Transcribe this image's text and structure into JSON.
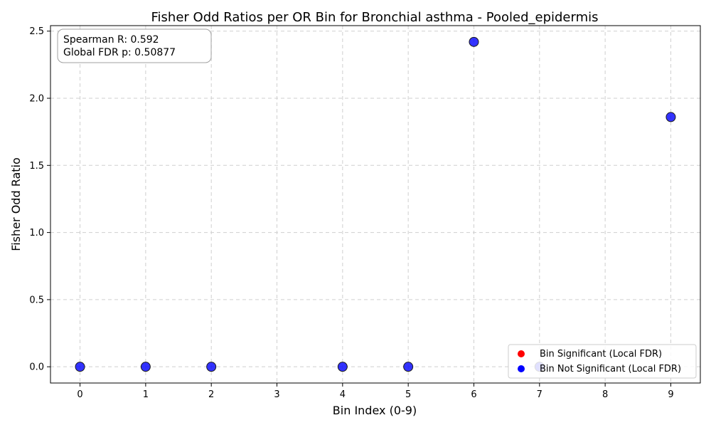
{
  "chart_data": {
    "type": "scatter",
    "title": "Fisher Odd Ratios per OR Bin for Bronchial asthma - Pooled_epidermis",
    "xlabel": "Bin Index (0-9)",
    "ylabel": "Fisher Odd Ratio",
    "xlim": [
      -0.45,
      9.45
    ],
    "ylim": [
      -0.121,
      2.541
    ],
    "x_ticks": [
      0,
      1,
      2,
      3,
      4,
      5,
      6,
      7,
      8,
      9
    ],
    "y_ticks": [
      0.0,
      0.5,
      1.0,
      1.5,
      2.0,
      2.5
    ],
    "y_tick_labels": [
      "0.0",
      "0.5",
      "1.0",
      "1.5",
      "2.0",
      "2.5"
    ],
    "grid": true,
    "legend_position": "lower-right",
    "series": [
      {
        "name": "Bin Significant (Local FDR)",
        "color": "#ff0000",
        "x": [],
        "y": []
      },
      {
        "name": "Bin Not Significant (Local FDR)",
        "color": "#0000ff",
        "x": [
          0,
          1,
          2,
          4,
          5,
          6,
          7,
          9
        ],
        "y": [
          0.0,
          0.0,
          0.0,
          0.0,
          0.0,
          2.42,
          0.0,
          1.86
        ]
      }
    ],
    "annotation": {
      "spearman_line": "Spearman R: 0.592",
      "fdr_line": "Global FDR p: 0.50877"
    }
  }
}
